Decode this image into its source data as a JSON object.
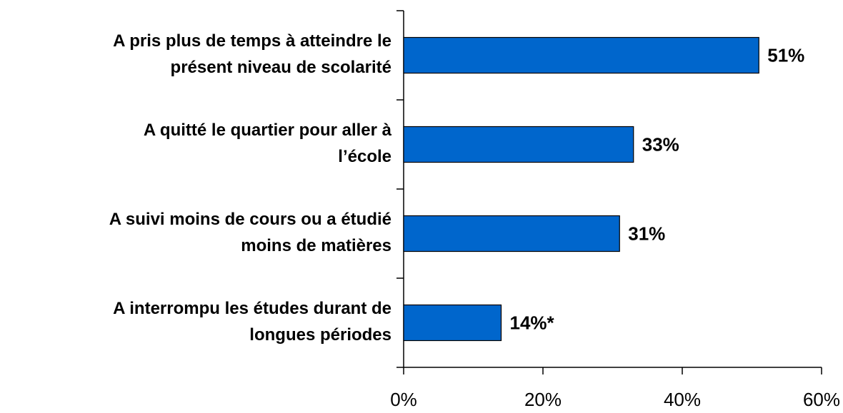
{
  "chart_data": {
    "type": "bar",
    "orientation": "horizontal",
    "categories": [
      "A pris plus de temps à atteindre le\nprésent niveau de scolarité",
      "A quitté le quartier pour aller à\nl’école",
      "A suivi moins de cours ou a étudié\nmoins de matières",
      "A interrompu les études durant de\nlongues périodes"
    ],
    "values": [
      51,
      33,
      31,
      14
    ],
    "value_labels": [
      "51%",
      "33%",
      "31%",
      "14%*"
    ],
    "color": "#0066cc",
    "xlim": [
      0,
      60
    ],
    "xticks": [
      {
        "value": 0,
        "label": "0%"
      },
      {
        "value": 20,
        "label": "20%"
      },
      {
        "value": 40,
        "label": "40%"
      },
      {
        "value": 60,
        "label": "60%"
      }
    ]
  }
}
